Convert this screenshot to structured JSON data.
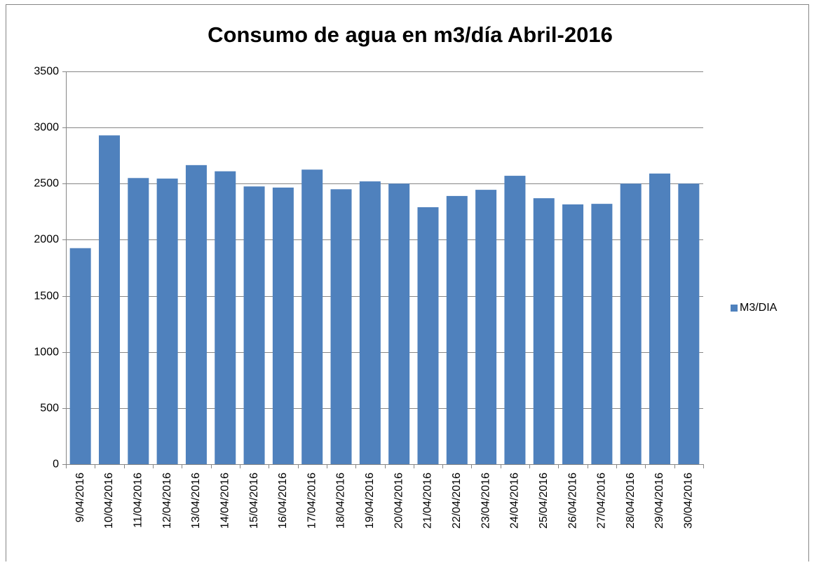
{
  "chart_data": {
    "type": "bar",
    "title": "Consumo de agua en m3/día Abril-2016",
    "categories": [
      "9/04/2016",
      "10/04/2016",
      "11/04/2016",
      "12/04/2016",
      "13/04/2016",
      "14/04/2016",
      "15/04/2016",
      "16/04/2016",
      "17/04/2016",
      "18/04/2016",
      "19/04/2016",
      "20/04/2016",
      "21/04/2016",
      "22/04/2016",
      "23/04/2016",
      "24/04/2016",
      "25/04/2016",
      "26/04/2016",
      "27/04/2016",
      "28/04/2016",
      "29/04/2016",
      "30/04/2016"
    ],
    "series": [
      {
        "name": "M3/DIA",
        "color": "#4f81bd",
        "values": [
          1925,
          2930,
          2550,
          2545,
          2665,
          2610,
          2475,
          2465,
          2625,
          2450,
          2520,
          2500,
          2290,
          2390,
          2445,
          2570,
          2370,
          2315,
          2320,
          2500,
          2590,
          2500
        ]
      }
    ],
    "ylim": [
      0,
      3500
    ],
    "yticks": [
      0,
      500,
      1000,
      1500,
      2000,
      2500,
      3000,
      3500
    ],
    "grid": true,
    "legend": "right"
  }
}
